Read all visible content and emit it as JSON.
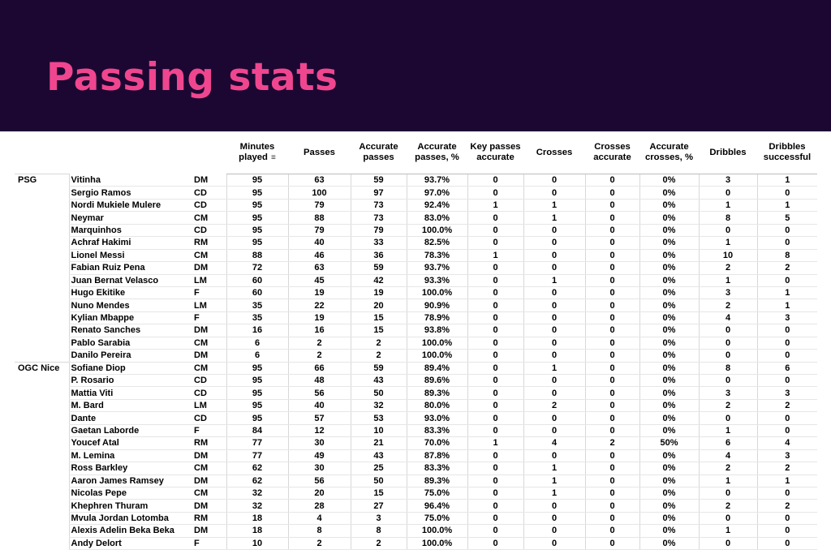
{
  "title": "Passing stats",
  "columns": [
    {
      "label": "Minutes played",
      "sorted": true
    },
    {
      "label": "Passes"
    },
    {
      "label": "Accurate passes"
    },
    {
      "label": "Accurate passes, %"
    },
    {
      "label": "Key passes accurate"
    },
    {
      "label": "Crosses"
    },
    {
      "label": "Crosses accurate"
    },
    {
      "label": "Accurate crosses, %"
    },
    {
      "label": "Dribbles"
    },
    {
      "label": "Dribbles successful"
    }
  ],
  "rows": [
    {
      "team": "PSG",
      "player": "Vitinha",
      "pos": "DM",
      "stats": [
        "95",
        "63",
        "59",
        "93.7%",
        "0",
        "0",
        "0",
        "0%",
        "3",
        "1"
      ]
    },
    {
      "team": "",
      "player": "Sergio Ramos",
      "pos": "CD",
      "stats": [
        "95",
        "100",
        "97",
        "97.0%",
        "0",
        "0",
        "0",
        "0%",
        "0",
        "0"
      ]
    },
    {
      "team": "",
      "player": "Nordi Mukiele Mulere",
      "pos": "CD",
      "stats": [
        "95",
        "79",
        "73",
        "92.4%",
        "1",
        "1",
        "0",
        "0%",
        "1",
        "1"
      ]
    },
    {
      "team": "",
      "player": "Neymar",
      "pos": "CM",
      "stats": [
        "95",
        "88",
        "73",
        "83.0%",
        "0",
        "1",
        "0",
        "0%",
        "8",
        "5"
      ]
    },
    {
      "team": "",
      "player": "Marquinhos",
      "pos": "CD",
      "stats": [
        "95",
        "79",
        "79",
        "100.0%",
        "0",
        "0",
        "0",
        "0%",
        "0",
        "0"
      ]
    },
    {
      "team": "",
      "player": "Achraf Hakimi",
      "pos": "RM",
      "stats": [
        "95",
        "40",
        "33",
        "82.5%",
        "0",
        "0",
        "0",
        "0%",
        "1",
        "0"
      ]
    },
    {
      "team": "",
      "player": "Lionel Messi",
      "pos": "CM",
      "stats": [
        "88",
        "46",
        "36",
        "78.3%",
        "1",
        "0",
        "0",
        "0%",
        "10",
        "8"
      ]
    },
    {
      "team": "",
      "player": "Fabian Ruiz Pena",
      "pos": "DM",
      "stats": [
        "72",
        "63",
        "59",
        "93.7%",
        "0",
        "0",
        "0",
        "0%",
        "2",
        "2"
      ]
    },
    {
      "team": "",
      "player": "Juan Bernat Velasco",
      "pos": "LM",
      "stats": [
        "60",
        "45",
        "42",
        "93.3%",
        "0",
        "1",
        "0",
        "0%",
        "1",
        "0"
      ]
    },
    {
      "team": "",
      "player": "Hugo Ekitike",
      "pos": "F",
      "stats": [
        "60",
        "19",
        "19",
        "100.0%",
        "0",
        "0",
        "0",
        "0%",
        "3",
        "1"
      ]
    },
    {
      "team": "",
      "player": "Nuno Mendes",
      "pos": "LM",
      "stats": [
        "35",
        "22",
        "20",
        "90.9%",
        "0",
        "0",
        "0",
        "0%",
        "2",
        "1"
      ]
    },
    {
      "team": "",
      "player": "Kylian Mbappe",
      "pos": "F",
      "stats": [
        "35",
        "19",
        "15",
        "78.9%",
        "0",
        "0",
        "0",
        "0%",
        "4",
        "3"
      ]
    },
    {
      "team": "",
      "player": "Renato Sanches",
      "pos": "DM",
      "stats": [
        "16",
        "16",
        "15",
        "93.8%",
        "0",
        "0",
        "0",
        "0%",
        "0",
        "0"
      ]
    },
    {
      "team": "",
      "player": "Pablo Sarabia",
      "pos": "CM",
      "stats": [
        "6",
        "2",
        "2",
        "100.0%",
        "0",
        "0",
        "0",
        "0%",
        "0",
        "0"
      ]
    },
    {
      "team": "",
      "player": "Danilo Pereira",
      "pos": "DM",
      "stats": [
        "6",
        "2",
        "2",
        "100.0%",
        "0",
        "0",
        "0",
        "0%",
        "0",
        "0"
      ]
    },
    {
      "team": "OGC Nice",
      "player": "Sofiane Diop",
      "pos": "CM",
      "stats": [
        "95",
        "66",
        "59",
        "89.4%",
        "0",
        "1",
        "0",
        "0%",
        "8",
        "6"
      ]
    },
    {
      "team": "",
      "player": "P. Rosario",
      "pos": "CD",
      "stats": [
        "95",
        "48",
        "43",
        "89.6%",
        "0",
        "0",
        "0",
        "0%",
        "0",
        "0"
      ]
    },
    {
      "team": "",
      "player": "Mattia Viti",
      "pos": "CD",
      "stats": [
        "95",
        "56",
        "50",
        "89.3%",
        "0",
        "0",
        "0",
        "0%",
        "3",
        "3"
      ]
    },
    {
      "team": "",
      "player": "M. Bard",
      "pos": "LM",
      "stats": [
        "95",
        "40",
        "32",
        "80.0%",
        "0",
        "2",
        "0",
        "0%",
        "2",
        "2"
      ]
    },
    {
      "team": "",
      "player": "Dante",
      "pos": "CD",
      "stats": [
        "95",
        "57",
        "53",
        "93.0%",
        "0",
        "0",
        "0",
        "0%",
        "0",
        "0"
      ]
    },
    {
      "team": "",
      "player": "Gaetan Laborde",
      "pos": "F",
      "stats": [
        "84",
        "12",
        "10",
        "83.3%",
        "0",
        "0",
        "0",
        "0%",
        "1",
        "0"
      ]
    },
    {
      "team": "",
      "player": "Youcef Atal",
      "pos": "RM",
      "stats": [
        "77",
        "30",
        "21",
        "70.0%",
        "1",
        "4",
        "2",
        "50%",
        "6",
        "4"
      ]
    },
    {
      "team": "",
      "player": "M. Lemina",
      "pos": "DM",
      "stats": [
        "77",
        "49",
        "43",
        "87.8%",
        "0",
        "0",
        "0",
        "0%",
        "4",
        "3"
      ]
    },
    {
      "team": "",
      "player": "Ross Barkley",
      "pos": "CM",
      "stats": [
        "62",
        "30",
        "25",
        "83.3%",
        "0",
        "1",
        "0",
        "0%",
        "2",
        "2"
      ]
    },
    {
      "team": "",
      "player": "Aaron James Ramsey",
      "pos": "DM",
      "stats": [
        "62",
        "56",
        "50",
        "89.3%",
        "0",
        "1",
        "0",
        "0%",
        "1",
        "1"
      ]
    },
    {
      "team": "",
      "player": "Nicolas Pepe",
      "pos": "CM",
      "stats": [
        "32",
        "20",
        "15",
        "75.0%",
        "0",
        "1",
        "0",
        "0%",
        "0",
        "0"
      ]
    },
    {
      "team": "",
      "player": "Khephren Thuram",
      "pos": "DM",
      "stats": [
        "32",
        "28",
        "27",
        "96.4%",
        "0",
        "0",
        "0",
        "0%",
        "2",
        "2"
      ]
    },
    {
      "team": "",
      "player": "Mvula Jordan Lotomba",
      "pos": "RM",
      "stats": [
        "18",
        "4",
        "3",
        "75.0%",
        "0",
        "0",
        "0",
        "0%",
        "0",
        "0"
      ]
    },
    {
      "team": "",
      "player": "Alexis Adelin Beka Beka",
      "pos": "DM",
      "stats": [
        "18",
        "8",
        "8",
        "100.0%",
        "0",
        "0",
        "0",
        "0%",
        "1",
        "0"
      ]
    },
    {
      "team": "",
      "player": "Andy Delort",
      "pos": "F",
      "stats": [
        "10",
        "2",
        "2",
        "100.0%",
        "0",
        "0",
        "0",
        "0%",
        "0",
        "0"
      ]
    }
  ]
}
